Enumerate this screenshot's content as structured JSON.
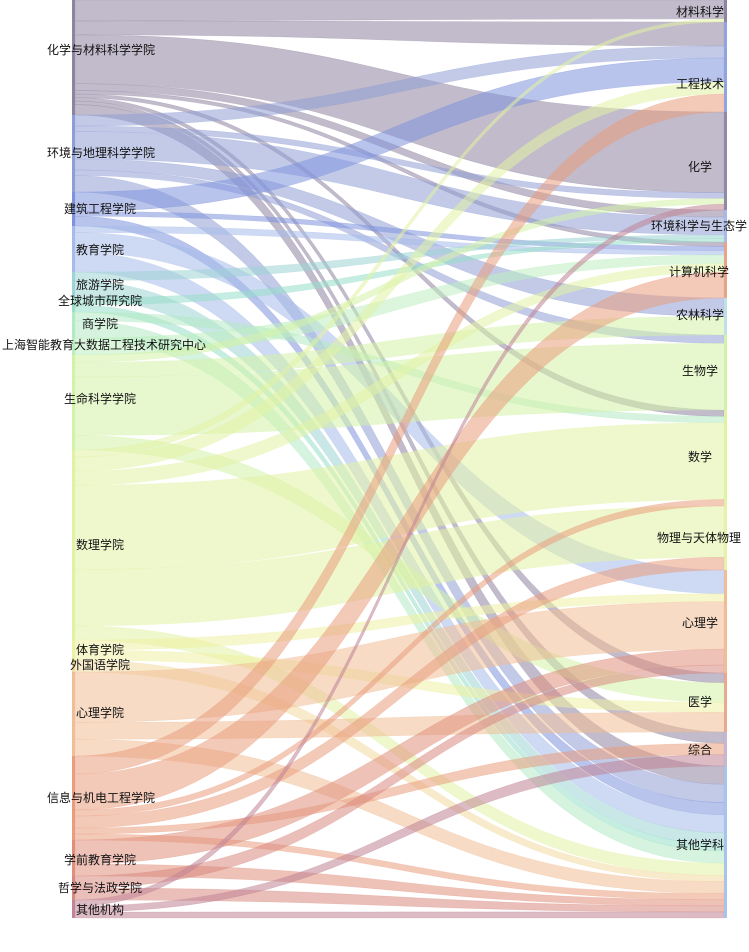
{
  "sankey": {
    "sources": [
      {
        "label": "化学与材料科学学院",
        "color": "#8e84a0"
      },
      {
        "label": "环境与地理科学学院",
        "color": "#8f9fd6"
      },
      {
        "label": "建筑工程学院",
        "color": "#7f93dd"
      },
      {
        "label": "教育学院",
        "color": "#a5bbe9"
      },
      {
        "label": "旅游学院",
        "color": "#9fd4d6"
      },
      {
        "label": "全球城市研究院",
        "color": "#97dfc9"
      },
      {
        "label": "商学院",
        "color": "#b3eac3"
      },
      {
        "label": "上海智能教育大数据工程技术研究中心",
        "color": "#bdeebf"
      },
      {
        "label": "生命科学学院",
        "color": "#d3f2a8"
      },
      {
        "label": "数理学院",
        "color": "#e1f2a4"
      },
      {
        "label": "体育学院",
        "color": "#eef0a3"
      },
      {
        "label": "外国语学院",
        "color": "#f3dba1"
      },
      {
        "label": "心理学院",
        "color": "#f0be96"
      },
      {
        "label": "信息与机电工程学院",
        "color": "#ea9d7e"
      },
      {
        "label": "学前教育学院",
        "color": "#e08f7c"
      },
      {
        "label": "哲学与法政学院",
        "color": "#d9897f"
      },
      {
        "label": "其他机构",
        "color": "#bf8496"
      }
    ],
    "targets": [
      {
        "label": "材料科学",
        "color": "#8e84a0"
      },
      {
        "label": "工程技术",
        "color": "#92a4e0"
      },
      {
        "label": "化学",
        "color": "#8f8aa6"
      },
      {
        "label": "环境科学与生态学",
        "color": "#a9b9e9"
      },
      {
        "label": "计算机科学",
        "color": "#e8a487"
      },
      {
        "label": "农林科学",
        "color": "#bde2e6"
      },
      {
        "label": "生物学",
        "color": "#d3f2a8"
      },
      {
        "label": "数学",
        "color": "#e1f2a4"
      },
      {
        "label": "物理与天体物理",
        "color": "#e6f2a8"
      },
      {
        "label": "心理学",
        "color": "#f0be96"
      },
      {
        "label": "医学",
        "color": "#e9a98f"
      },
      {
        "label": "综合",
        "color": "#c7b6cf"
      },
      {
        "label": "其他学科",
        "color": "#a7c4ec"
      }
    ]
  }
}
